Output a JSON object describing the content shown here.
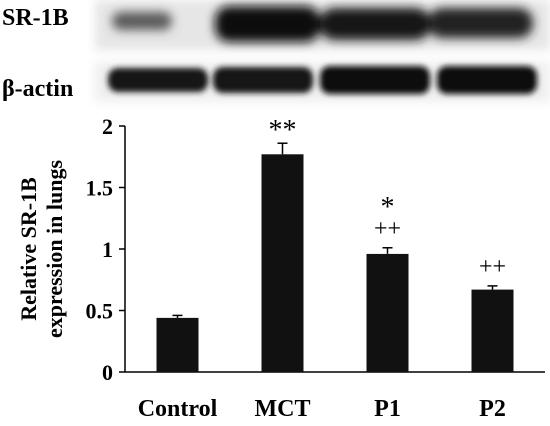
{
  "blot": {
    "row1_label": "SR-1B",
    "row2_label": "β-actin"
  },
  "chart_data": {
    "type": "bar",
    "categories": [
      "Control",
      "MCT",
      "P1",
      "P2"
    ],
    "values": [
      0.44,
      1.77,
      0.96,
      0.67
    ],
    "errors": [
      0.02,
      0.09,
      0.05,
      0.03
    ],
    "annotations": [
      "",
      "**",
      "*\n++",
      "++"
    ],
    "title": "",
    "xlabel": "",
    "ylabel": "Relative SR-1B expression in lungs",
    "ylim": [
      0,
      2
    ],
    "yticks": [
      "0",
      "0.5",
      "1",
      "1.5",
      "2"
    ],
    "grid": false,
    "bar_color": "#111111"
  }
}
